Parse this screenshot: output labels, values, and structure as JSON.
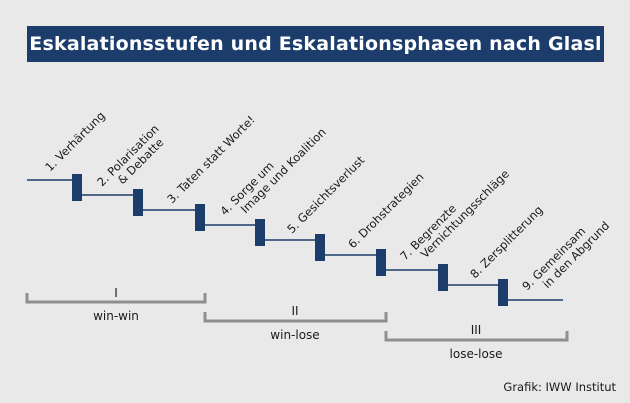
{
  "title": "Eskalationsstufen und Eskalationsphasen nach Glasl",
  "stages": [
    {
      "number": "1.",
      "lines": [
        "Verhärtung"
      ]
    },
    {
      "number": "2.",
      "lines": [
        "Polarisation",
        "& Debatte"
      ]
    },
    {
      "number": "3.",
      "lines": [
        "Taten statt Worte!"
      ]
    },
    {
      "number": "4.",
      "lines": [
        "Sorge um",
        "Image und Koalition"
      ]
    },
    {
      "number": "5.",
      "lines": [
        "Gesichtsverlust"
      ]
    },
    {
      "number": "6.",
      "lines": [
        "Drohstrategien"
      ]
    },
    {
      "number": "7.",
      "lines": [
        "Begrenzte",
        "Vernichtungsschläge"
      ]
    },
    {
      "number": "8.",
      "lines": [
        "Zersplitterung"
      ]
    },
    {
      "number": "9.",
      "lines": [
        "Gemeinsam",
        "in den Abgrund"
      ]
    }
  ],
  "phases": [
    {
      "numeral": "I",
      "label": "win-win"
    },
    {
      "numeral": "II",
      "label": "win-lose"
    },
    {
      "numeral": "III",
      "label": "lose-lose"
    }
  ],
  "credit": "Grafik: IWW Institut",
  "colors": {
    "navy": "#1c3d6b",
    "bracket": "#8f8f8f",
    "background": "#e9e9e9"
  }
}
